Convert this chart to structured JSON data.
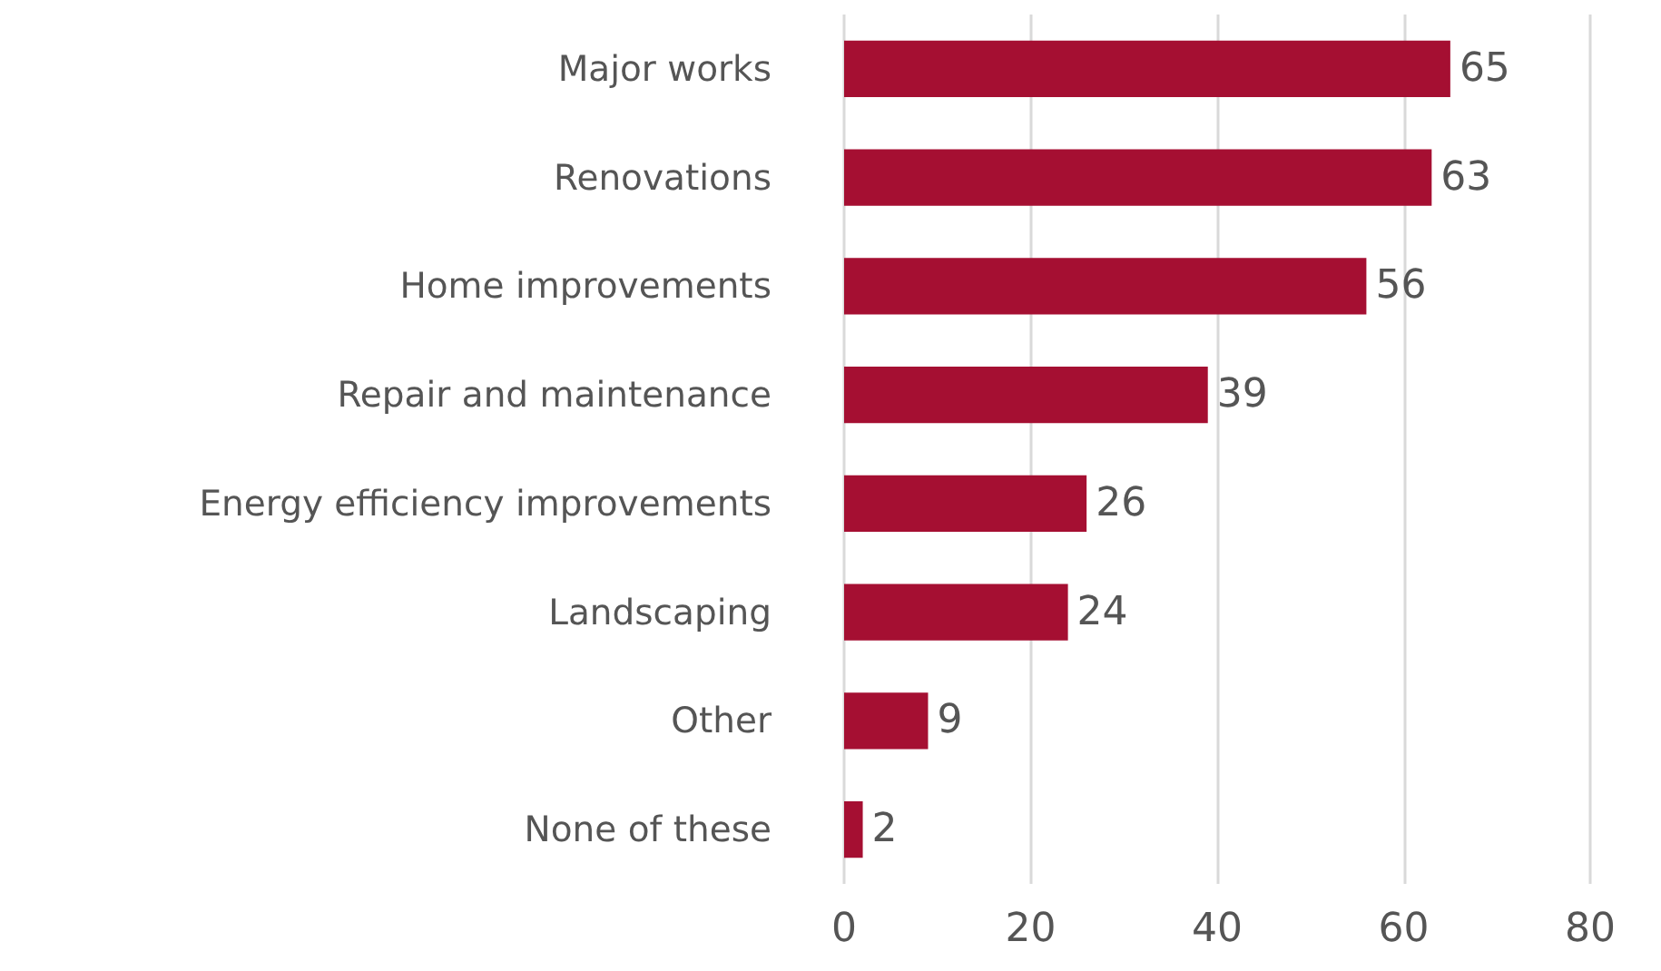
{
  "chart_data": {
    "type": "bar",
    "orientation": "horizontal",
    "categories": [
      "Major works",
      "Renovations",
      "Home improvements",
      "Repair and maintenance",
      "Energy efficiency improvements",
      "Landscaping",
      "Other",
      "None of these"
    ],
    "values": [
      65,
      63,
      56,
      39,
      26,
      24,
      9,
      2
    ],
    "color": "#a50f32",
    "xlim": [
      0,
      80
    ],
    "xticks": [
      0,
      20,
      40,
      60,
      80
    ],
    "grid": "x",
    "data_labels": true
  }
}
